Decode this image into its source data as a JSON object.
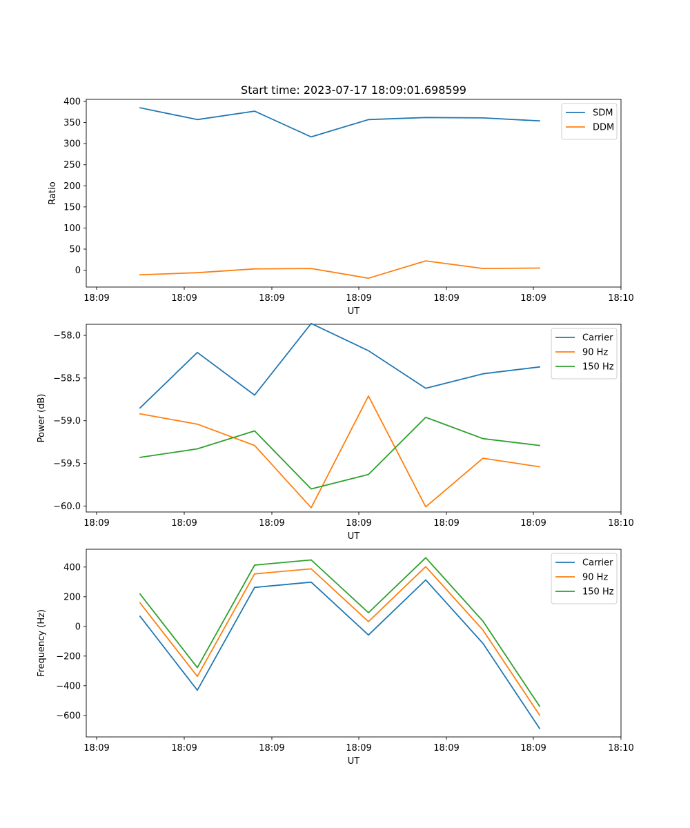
{
  "figure_title": "Start time: 2023-07-17 18:09:01.698599",
  "colors": {
    "blue": "#1f77b4",
    "orange": "#ff7f0e",
    "green": "#2ca02c"
  },
  "chart_data": [
    {
      "type": "line",
      "xlabel": "UT",
      "ylabel": "Ratio",
      "x_ticks": [
        "18:09",
        "18:09",
        "18:09",
        "18:09",
        "18:09",
        "18:09",
        "18:10"
      ],
      "y_ticks": [
        "0",
        "50",
        "100",
        "150",
        "200",
        "250",
        "300",
        "350",
        "400"
      ],
      "ylim": [
        -40,
        405
      ],
      "legend_position": "top-right",
      "series": [
        {
          "name": "SDM",
          "color": "#1f77b4",
          "values": [
            385,
            357,
            377,
            316,
            357,
            362,
            361,
            354
          ]
        },
        {
          "name": "DDM",
          "color": "#ff7f0e",
          "values": [
            -11,
            -6,
            3,
            4,
            -19,
            22,
            4,
            5
          ]
        }
      ]
    },
    {
      "type": "line",
      "xlabel": "UT",
      "ylabel": "Power (dB)",
      "x_ticks": [
        "18:09",
        "18:09",
        "18:09",
        "18:09",
        "18:09",
        "18:09",
        "18:10"
      ],
      "y_ticks": [
        "−58.0",
        "−58.5",
        "−59.0",
        "−59.5",
        "−60.0"
      ],
      "ylim": [
        -60.07,
        -57.87
      ],
      "legend_position": "top-right",
      "series": [
        {
          "name": "Carrier",
          "color": "#1f77b4",
          "values": [
            -58.85,
            -58.2,
            -58.7,
            -57.86,
            -58.18,
            -58.62,
            -58.45,
            -58.37
          ]
        },
        {
          "name": "90 Hz",
          "color": "#ff7f0e",
          "values": [
            -58.92,
            -59.04,
            -59.29,
            -60.02,
            -58.71,
            -60.01,
            -59.44,
            -59.54
          ]
        },
        {
          "name": "150 Hz",
          "color": "#2ca02c",
          "values": [
            -59.43,
            -59.33,
            -59.12,
            -59.8,
            -59.63,
            -58.96,
            -59.21,
            -59.29
          ]
        }
      ]
    },
    {
      "type": "line",
      "xlabel": "UT",
      "ylabel": "Frequency (Hz)",
      "x_ticks": [
        "18:09",
        "18:09",
        "18:09",
        "18:09",
        "18:09",
        "18:09",
        "18:10"
      ],
      "y_ticks": [
        "−600",
        "−400",
        "−200",
        "0",
        "200",
        "400"
      ],
      "ylim": [
        -745,
        520
      ],
      "legend_position": "top-right",
      "series": [
        {
          "name": "Carrier",
          "color": "#1f77b4",
          "values": [
            68,
            -430,
            263,
            298,
            -58,
            313,
            -115,
            -688
          ]
        },
        {
          "name": "90 Hz",
          "color": "#ff7f0e",
          "values": [
            158,
            -337,
            354,
            388,
            32,
            403,
            -25,
            -598
          ]
        },
        {
          "name": "150 Hz",
          "color": "#2ca02c",
          "values": [
            218,
            -278,
            413,
            448,
            92,
            463,
            35,
            -538
          ]
        }
      ]
    }
  ]
}
